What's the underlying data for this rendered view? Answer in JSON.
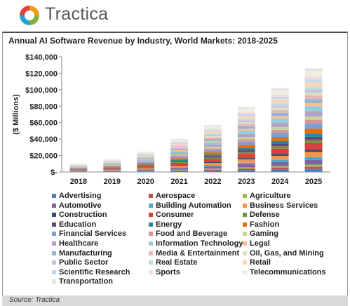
{
  "brand": {
    "name": "Tractica"
  },
  "source": "Source: Tractica",
  "chart_data": {
    "type": "bar",
    "stacked": true,
    "title": "Annual AI Software Revenue by Industry, World Markets: 2018-2025",
    "ylabel": "($ Millions)",
    "xlabel": "",
    "ylim": [
      0,
      140000
    ],
    "yticks": [
      0,
      20000,
      40000,
      60000,
      80000,
      100000,
      120000,
      140000
    ],
    "ytick_labels": [
      "$-",
      "$20,000",
      "$40,000",
      "$60,000",
      "$80,000",
      "$100,000",
      "$120,000",
      "$140,000"
    ],
    "categories": [
      "2018",
      "2019",
      "2020",
      "2021",
      "2022",
      "2023",
      "2024",
      "2025"
    ],
    "totals": [
      10000,
      15500,
      24500,
      40000,
      57000,
      79000,
      102000,
      126000
    ],
    "grid": false,
    "legend_position": "bottom",
    "legend_columns": 3,
    "series": [
      {
        "name": "Advertising",
        "color": "#4f81bd",
        "weight": 0.8
      },
      {
        "name": "Aerospace",
        "color": "#c0504d",
        "weight": 0.6
      },
      {
        "name": "Agriculture",
        "color": "#9bbb59",
        "weight": 0.6
      },
      {
        "name": "Automotive",
        "color": "#8064a2",
        "weight": 1.3
      },
      {
        "name": "Building Automation",
        "color": "#4bacc6",
        "weight": 0.7
      },
      {
        "name": "Business Services",
        "color": "#f79646",
        "weight": 1.4
      },
      {
        "name": "Construction",
        "color": "#2c4d75",
        "weight": 0.6
      },
      {
        "name": "Consumer",
        "color": "#d9403b",
        "weight": 1.8
      },
      {
        "name": "Defense",
        "color": "#77933c",
        "weight": 0.8
      },
      {
        "name": "Education",
        "color": "#604a7b",
        "weight": 0.9
      },
      {
        "name": "Energy",
        "color": "#31859c",
        "weight": 0.9
      },
      {
        "name": "Fashion",
        "color": "#e46c0a",
        "weight": 1.3
      },
      {
        "name": "Financial Services",
        "color": "#7f9fd4",
        "weight": 1.4
      },
      {
        "name": "Food and Beverage",
        "color": "#d99694",
        "weight": 1.0
      },
      {
        "name": "Gaming",
        "color": "#c3d69b",
        "weight": 0.9
      },
      {
        "name": "Healthcare",
        "color": "#b3a2c7",
        "weight": 1.4
      },
      {
        "name": "Information Technology",
        "color": "#93cddd",
        "weight": 1.4
      },
      {
        "name": "Legal",
        "color": "#fac090",
        "weight": 0.8
      },
      {
        "name": "Manufacturing",
        "color": "#95b3d7",
        "weight": 1.1
      },
      {
        "name": "Media & Entertainment",
        "color": "#e6b9b8",
        "weight": 1.0
      },
      {
        "name": "Oil, Gas, and Mining",
        "color": "#d7e4bd",
        "weight": 0.7
      },
      {
        "name": "Public Sector",
        "color": "#ccc1da",
        "weight": 0.8
      },
      {
        "name": "Real Estate",
        "color": "#b7dee8",
        "weight": 0.7
      },
      {
        "name": "Retail",
        "color": "#fcd5b5",
        "weight": 1.3
      },
      {
        "name": "Scientific Research",
        "color": "#c6d9f1",
        "weight": 0.9
      },
      {
        "name": "Sports",
        "color": "#f2dcdb",
        "weight": 0.7
      },
      {
        "name": "Telecommunications",
        "color": "#ebf1de",
        "weight": 1.4
      },
      {
        "name": "Transportation",
        "color": "#e5e0ec",
        "weight": 0.8
      }
    ]
  }
}
